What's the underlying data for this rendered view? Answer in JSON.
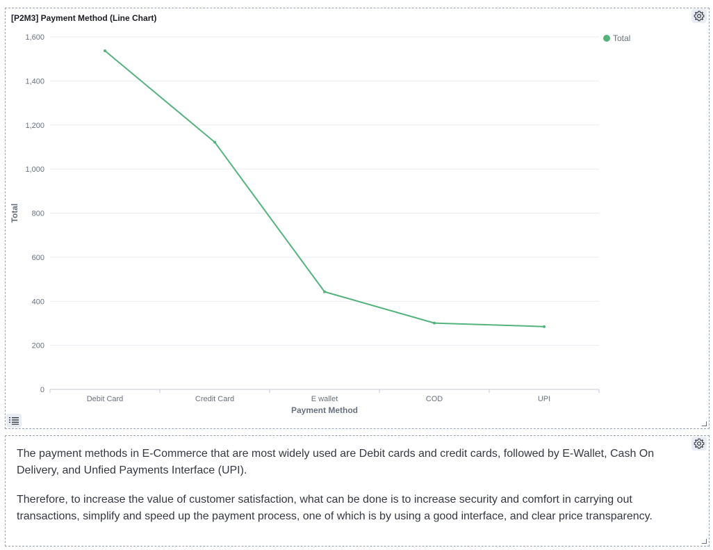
{
  "chart_panel": {
    "title": "[P2M3] Payment Method (Line Chart)"
  },
  "chart_data": {
    "type": "line",
    "categories": [
      "Debit Card",
      "Credit Card",
      "E wallet",
      "COD",
      "UPI"
    ],
    "series": [
      {
        "name": "Total",
        "values": [
          1537,
          1122,
          443,
          301,
          285
        ],
        "color": "#54b37d"
      }
    ],
    "xlabel": "Payment Method",
    "ylabel": "Total",
    "ylim": [
      0,
      1600
    ],
    "yticks": [
      0,
      200,
      400,
      600,
      800,
      1000,
      1200,
      1400,
      1600
    ],
    "ytick_labels": [
      "0",
      "200",
      "400",
      "600",
      "800",
      "1,000",
      "1,200",
      "1,400",
      "1,600"
    ],
    "grid": true,
    "legend": "top-right"
  },
  "text_panel": {
    "paragraphs": [
      "The payment methods in E-Commerce that are most widely used are Debit cards and credit cards, followed by E-Wallet, Cash On Delivery, and Unfied Payments Interface (UPI).",
      "Therefore, to increase the value of customer satisfaction, what can be done is to increase security and comfort in carrying out transactions, simplify and speed up the payment process, one of which is by using a good interface, and clear price transparency."
    ]
  },
  "icons": {
    "settings": "gear-icon",
    "legend_toggle": "list-icon",
    "resize": "resize-handle-icon"
  }
}
